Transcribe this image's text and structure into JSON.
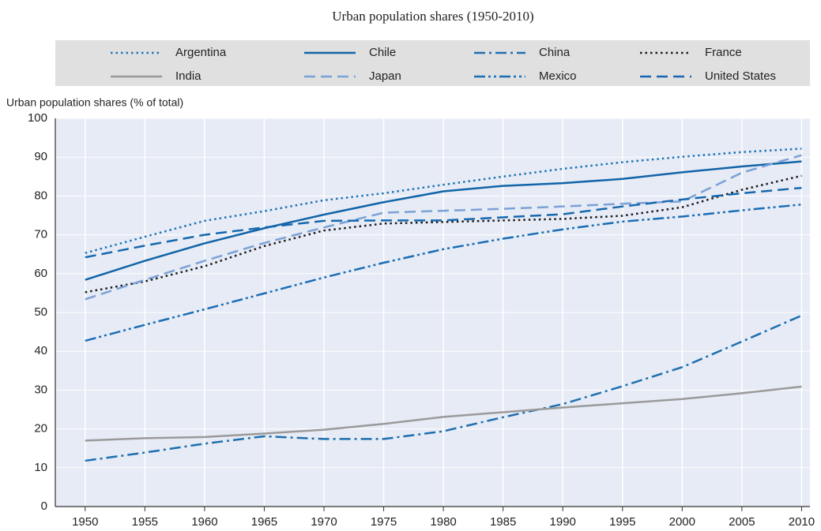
{
  "chart_data": {
    "type": "line",
    "title": "Urban population shares (1950-2010)",
    "y_label": "Urban population shares (% of total)",
    "x": [
      1950,
      1955,
      1960,
      1965,
      1970,
      1975,
      1980,
      1985,
      1990,
      1995,
      2000,
      2005,
      2010
    ],
    "xlim": [
      1947.5,
      2010.7
    ],
    "xticks": [
      1950,
      1955,
      1960,
      1965,
      1970,
      1975,
      1980,
      1985,
      1990,
      1995,
      2000,
      2005,
      2010
    ],
    "ylim": [
      0,
      100
    ],
    "yticks": [
      0,
      10,
      20,
      30,
      40,
      50,
      60,
      70,
      80,
      90,
      100
    ],
    "grid": true,
    "series": [
      {
        "name": "Argentina",
        "color": "#1f73b7",
        "dash": "dotted",
        "values": [
          65.3,
          69.5,
          73.6,
          76.1,
          78.9,
          80.7,
          82.9,
          85.0,
          87.0,
          88.7,
          90.1,
          91.3,
          92.2
        ]
      },
      {
        "name": "Chile",
        "color": "#1164a8",
        "dash": "solid",
        "values": [
          58.4,
          63.3,
          67.8,
          71.7,
          75.2,
          78.4,
          81.2,
          82.6,
          83.3,
          84.4,
          86.1,
          87.6,
          88.9
        ]
      },
      {
        "name": "China",
        "color": "#1d6fb0",
        "dash": "dashdot",
        "values": [
          11.8,
          13.9,
          16.2,
          18.1,
          17.4,
          17.4,
          19.4,
          23.0,
          26.4,
          31.0,
          35.9,
          42.5,
          49.2
        ]
      },
      {
        "name": "France",
        "color": "#1a1a1a",
        "dash": "dotted",
        "values": [
          55.2,
          58.0,
          61.9,
          67.1,
          71.1,
          72.9,
          73.3,
          73.7,
          74.1,
          74.9,
          77.1,
          81.6,
          85.2
        ]
      },
      {
        "name": "India",
        "color": "#9a9a9a",
        "dash": "solid",
        "values": [
          17.0,
          17.6,
          17.9,
          18.8,
          19.8,
          21.3,
          23.1,
          24.3,
          25.5,
          26.6,
          27.7,
          29.2,
          30.9
        ]
      },
      {
        "name": "Japan",
        "color": "#7ba1d6",
        "dash": "dashed",
        "values": [
          53.4,
          58.4,
          63.3,
          67.9,
          71.9,
          75.7,
          76.2,
          76.7,
          77.3,
          78.0,
          78.6,
          86.0,
          90.5
        ]
      },
      {
        "name": "Mexico",
        "color": "#1a6db5",
        "dash": "dashdotdot",
        "values": [
          42.7,
          46.8,
          50.8,
          54.9,
          59.0,
          62.8,
          66.3,
          69.0,
          71.4,
          73.4,
          74.7,
          76.3,
          77.8
        ]
      },
      {
        "name": "United States",
        "color": "#1668ae",
        "dash": "dashed",
        "values": [
          64.2,
          67.2,
          70.0,
          71.9,
          73.6,
          73.7,
          73.7,
          74.5,
          75.3,
          77.3,
          79.1,
          80.7,
          82.1
        ]
      }
    ]
  }
}
